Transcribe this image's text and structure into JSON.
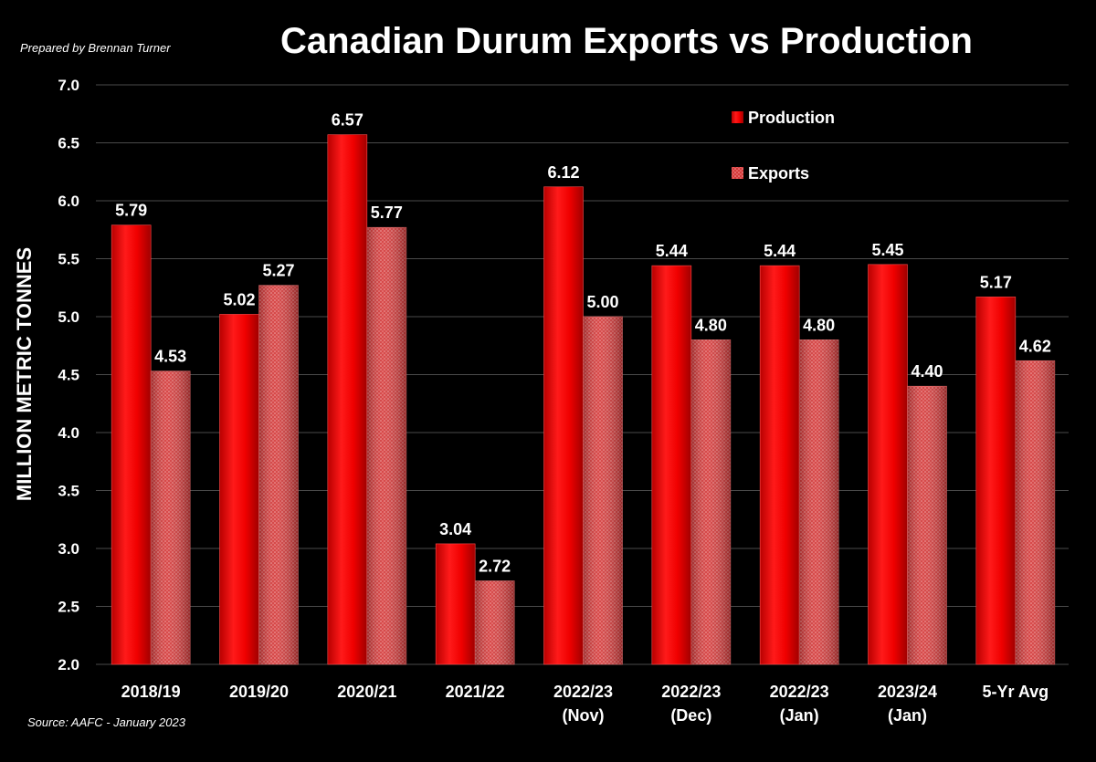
{
  "prepared_by": "Prepared by Brennan Turner",
  "source": "Source: AAFC - January 2023",
  "colors": {
    "production": "#e60000",
    "exports": "#e05050",
    "background": "#000000",
    "grid": "#4a4a4a"
  },
  "chart_data": {
    "type": "bar",
    "title": "Canadian Durum Exports vs Production",
    "xlabel": "",
    "ylabel": "MILLION METRIC TONNES",
    "ylim": [
      2.0,
      7.0
    ],
    "yticks": [
      "2.0",
      "2.5",
      "3.0",
      "3.5",
      "4.0",
      "4.5",
      "5.0",
      "5.5",
      "6.0",
      "6.5",
      "7.0"
    ],
    "grid": true,
    "legend_position": "top-right",
    "categories": [
      [
        "2018/19"
      ],
      [
        "2019/20"
      ],
      [
        "2020/21"
      ],
      [
        "2021/22"
      ],
      [
        "2022/23",
        "(Nov)"
      ],
      [
        "2022/23",
        "(Dec)"
      ],
      [
        "2022/23",
        "(Jan)"
      ],
      [
        "2023/24",
        "(Jan)"
      ],
      [
        "5-Yr Avg"
      ]
    ],
    "series": [
      {
        "name": "Production",
        "values": [
          5.79,
          5.02,
          6.57,
          3.04,
          6.12,
          5.44,
          5.44,
          5.45,
          5.17
        ],
        "labels": [
          "5.79",
          "5.02",
          "6.57",
          "3.04",
          "6.12",
          "5.44",
          "5.44",
          "5.45",
          "5.17"
        ]
      },
      {
        "name": "Exports",
        "values": [
          4.53,
          5.27,
          5.77,
          2.72,
          5.0,
          4.8,
          4.8,
          4.4,
          4.62
        ],
        "labels": [
          "4.53",
          "5.27",
          "5.77",
          "2.72",
          "5.00",
          "4.80",
          "4.80",
          "4.40",
          "4.62"
        ]
      }
    ]
  }
}
